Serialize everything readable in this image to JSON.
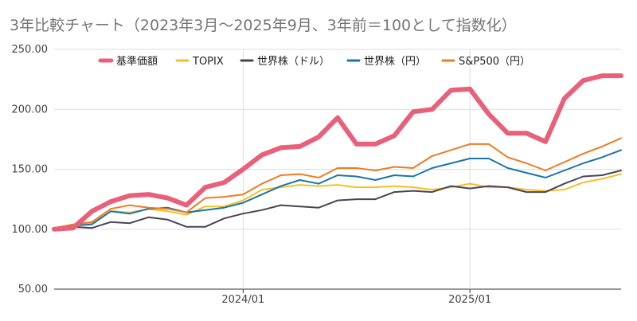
{
  "chart_data": {
    "type": "line",
    "title": "3年比較チャート（2023年3月～2025年9月、3年前＝100として指数化）",
    "xlabel": "",
    "ylabel": "",
    "ylim": [
      50,
      250
    ],
    "yticks": [
      "50.00",
      "100.00",
      "150.00",
      "200.00",
      "250.00"
    ],
    "yticks_values": [
      50,
      100,
      150,
      200,
      250
    ],
    "x_start": "2023-03",
    "x_end": "2025-09",
    "xticks": [
      {
        "label": "2024/01",
        "month": "2024-01"
      },
      {
        "label": "2025/01",
        "month": "2025-01"
      }
    ],
    "grid": true,
    "legend_position": "top",
    "x": [
      "2023-03",
      "2023-04",
      "2023-05",
      "2023-06",
      "2023-07",
      "2023-08",
      "2023-09",
      "2023-10",
      "2023-11",
      "2023-12",
      "2024-01",
      "2024-02",
      "2024-03",
      "2024-04",
      "2024-05",
      "2024-06",
      "2024-07",
      "2024-08",
      "2024-09",
      "2024-10",
      "2024-11",
      "2024-12",
      "2025-01",
      "2025-02",
      "2025-03",
      "2025-04",
      "2025-05",
      "2025-06",
      "2025-07",
      "2025-08",
      "2025-09"
    ],
    "series": [
      {
        "name": "基準価額",
        "color": "#e8607a",
        "width": 6,
        "values": [
          100,
          101,
          115,
          123,
          128,
          129,
          126,
          120,
          135,
          139,
          150,
          162,
          168,
          169,
          177,
          193,
          171,
          171,
          178,
          198,
          200,
          216,
          217,
          196,
          180,
          180,
          173,
          209,
          224,
          228,
          228
        ]
      },
      {
        "name": "TOPIX",
        "color": "#f6bf26",
        "width": 2,
        "values": [
          101,
          103,
          105,
          115,
          114,
          117,
          115,
          112,
          119,
          119,
          124,
          133,
          135,
          137,
          136,
          137,
          135,
          135,
          136,
          135,
          133,
          135,
          138,
          135,
          135,
          133,
          132,
          133,
          139,
          142,
          146
        ]
      },
      {
        "name": "世界株（ドル）",
        "color": "#4a4356",
        "width": 2,
        "values": [
          100,
          102,
          101,
          106,
          105,
          110,
          108,
          102,
          102,
          109,
          113,
          116,
          120,
          119,
          118,
          124,
          125,
          125,
          131,
          132,
          131,
          136,
          134,
          136,
          135,
          131,
          131,
          138,
          144,
          145,
          149
        ]
      },
      {
        "name": "世界株（円）",
        "color": "#1b75a8",
        "width": 2,
        "values": [
          100,
          103,
          104,
          115,
          113,
          117,
          118,
          114,
          116,
          118,
          122,
          129,
          136,
          141,
          138,
          145,
          144,
          141,
          145,
          144,
          151,
          155,
          159,
          159,
          151,
          147,
          143,
          149,
          155,
          160,
          166
        ]
      },
      {
        "name": "S&P500（円）",
        "color": "#f07b20",
        "width": 2,
        "values": [
          101,
          104,
          106,
          117,
          120,
          118,
          117,
          114,
          126,
          127,
          129,
          138,
          145,
          146,
          143,
          151,
          151,
          149,
          152,
          151,
          161,
          166,
          171,
          171,
          160,
          155,
          149,
          156,
          163,
          169,
          176
        ]
      }
    ]
  }
}
